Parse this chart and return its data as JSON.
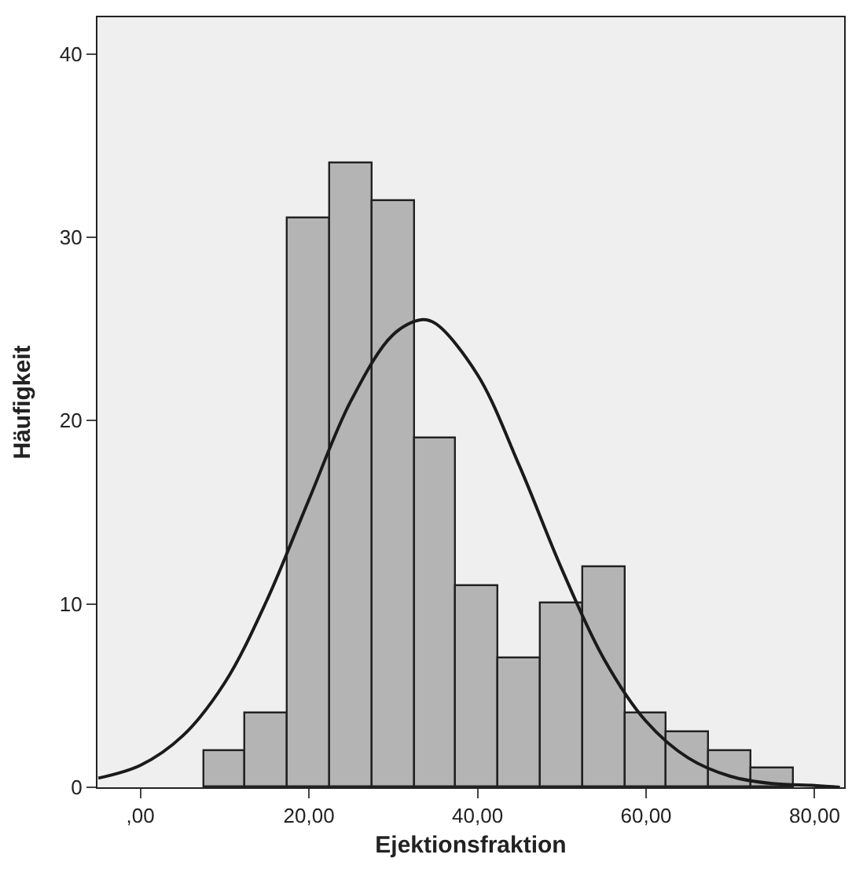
{
  "chart_data": {
    "type": "histogram",
    "xlabel": "Ejektionsfraktion",
    "ylabel": "Häufigkeit",
    "bins": [
      7.5,
      12.5,
      17.5,
      22.5,
      27.5,
      32.5,
      37.5,
      42.5,
      47.5,
      52.5,
      57.5,
      62.5,
      67.5,
      72.5,
      77.5
    ],
    "values": [
      2,
      4,
      31,
      34,
      32,
      19,
      11,
      7,
      10,
      12,
      4,
      3,
      2,
      1
    ],
    "color": "#b4b4b4",
    "series": [
      {
        "type": "line",
        "color": "#1a1a1a",
        "x": [
          -5,
          0,
          5,
          10,
          15,
          20,
          25,
          30,
          33.3,
          35,
          40,
          45,
          50,
          55,
          60,
          65,
          70,
          75,
          80,
          83
        ],
        "values": [
          0.5,
          1.2,
          2.8,
          5.7,
          10.2,
          15.7,
          21.1,
          24.7,
          25.5,
          25.3,
          22.5,
          17.5,
          11.9,
          7.0,
          3.6,
          1.6,
          0.6,
          0.2,
          0.1,
          0.0
        ]
      }
    ],
    "xlim": [
      -5.1,
      83.5
    ],
    "ylim": [
      0,
      42
    ],
    "xticks": [
      {
        "value": 0,
        "label": ",00"
      },
      {
        "value": 20,
        "label": "20,00"
      },
      {
        "value": 40,
        "label": "40,00"
      },
      {
        "value": 60,
        "label": "60,00"
      },
      {
        "value": 80,
        "label": "80,00"
      }
    ],
    "yticks": [
      0,
      10,
      20,
      30,
      40
    ],
    "grid": false
  }
}
